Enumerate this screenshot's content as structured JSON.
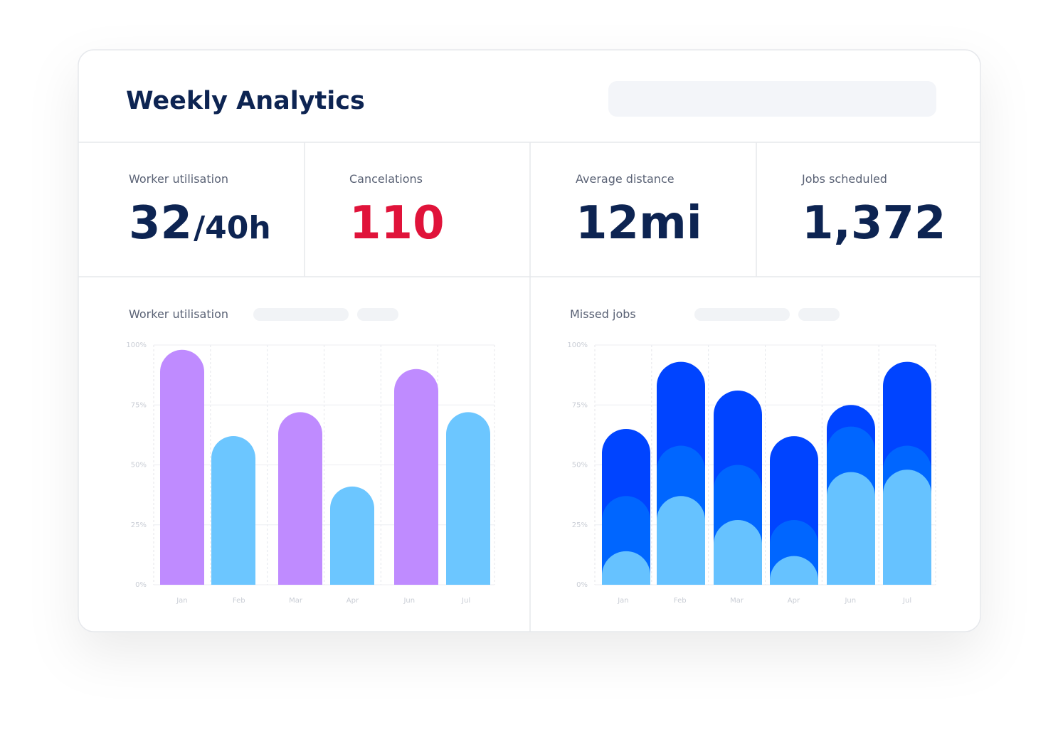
{
  "header": {
    "title": "Weekly Analytics"
  },
  "kpis": [
    {
      "label": "Worker utilisation",
      "value": "32",
      "unit": "/40h",
      "color": "#0d2452"
    },
    {
      "label": "Cancelations",
      "value": "110",
      "color": "#e0133a"
    },
    {
      "label": "Average distance",
      "value": "12mi",
      "color": "#0d2452"
    },
    {
      "label": "Jobs scheduled",
      "value": "1,372",
      "color": "#0d2452"
    }
  ],
  "chart_data": [
    {
      "type": "bar",
      "title": "Worker utilisation",
      "categories": [
        "Jan",
        "Feb",
        "Mar",
        "Apr",
        "Jun",
        "Jul"
      ],
      "values": [
        98,
        62,
        72,
        41,
        90,
        72
      ],
      "colors": [
        "#bf8bff",
        "#6cc6ff",
        "#bf8bff",
        "#6cc6ff",
        "#bf8bff",
        "#6cc6ff"
      ],
      "ylim": [
        0,
        100
      ],
      "yticks": [
        {
          "value": 0,
          "label": "0%"
        },
        {
          "value": 25,
          "label": "25%"
        },
        {
          "value": 50,
          "label": "50%"
        },
        {
          "value": 75,
          "label": "75%"
        },
        {
          "value": 100,
          "label": "100%"
        }
      ],
      "grid": true
    },
    {
      "type": "stacked_bar",
      "title": "Missed jobs",
      "categories": [
        "Jan",
        "Feb",
        "Mar",
        "Apr",
        "Jun",
        "Jul"
      ],
      "series": [
        {
          "color": "#66c2ff",
          "values": [
            14,
            37,
            27,
            12,
            47,
            48
          ]
        },
        {
          "color": "#0066ff",
          "values": [
            23,
            21,
            23,
            15,
            19,
            10
          ]
        },
        {
          "color": "#0044ff",
          "values": [
            28,
            35,
            31,
            35,
            9,
            35
          ]
        }
      ],
      "ylim": [
        0,
        100
      ],
      "yticks": [
        {
          "value": 0,
          "label": "0%"
        },
        {
          "value": 25,
          "label": "25%"
        },
        {
          "value": 50,
          "label": "50%"
        },
        {
          "value": 75,
          "label": "75%"
        },
        {
          "value": 100,
          "label": "100%"
        }
      ],
      "grid": true
    }
  ]
}
